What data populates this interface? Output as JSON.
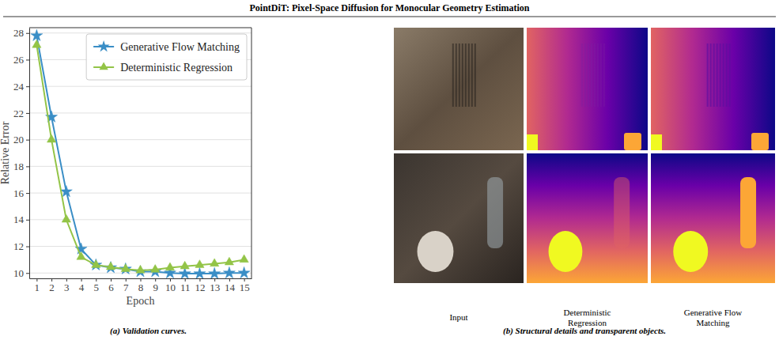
{
  "header": {
    "title": "PointDiT: Pixel-Space Diffusion for Monocular Geometry Estimation"
  },
  "chart_data": {
    "type": "line",
    "x_label": "Epoch",
    "y_label": "Relative Error",
    "x": [
      1,
      2,
      3,
      4,
      5,
      6,
      7,
      8,
      9,
      10,
      11,
      12,
      13,
      14,
      15
    ],
    "xlim": [
      0.5,
      15.5
    ],
    "xticks": [
      1,
      2,
      3,
      4,
      5,
      6,
      7,
      8,
      9,
      10,
      11,
      12,
      13,
      14,
      15
    ],
    "ylim": [
      9.6,
      28.4
    ],
    "yticks": [
      10,
      12,
      14,
      16,
      18,
      20,
      22,
      24,
      26,
      28
    ],
    "grid": true,
    "legend": "upper right",
    "series": [
      {
        "name": "Generative Flow Matching",
        "color": "#3a8ec6",
        "marker": "star",
        "values": [
          27.8,
          21.7,
          16.1,
          11.8,
          10.6,
          10.4,
          10.3,
          10.1,
          10.1,
          10.0,
          9.95,
          9.95,
          9.95,
          10.0,
          10.0
        ]
      },
      {
        "name": "Deterministic Regression",
        "color": "#93c447",
        "marker": "triangle",
        "values": [
          27.1,
          20.0,
          14.0,
          11.2,
          10.6,
          10.45,
          10.3,
          10.2,
          10.25,
          10.4,
          10.5,
          10.6,
          10.7,
          10.8,
          11.0
        ]
      }
    ]
  },
  "captions": {
    "a": "(a) Validation curves.",
    "b": "(b) Structural details and transparent objects."
  },
  "panel_b": {
    "columns": [
      "Input",
      "Deterministic Regression",
      "Generative Flow Matching"
    ]
  }
}
